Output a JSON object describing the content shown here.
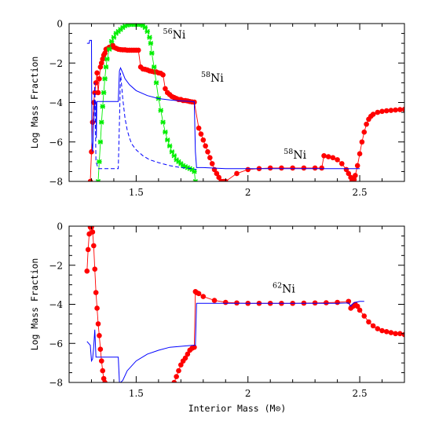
{
  "chart_data": [
    {
      "type": "scatter",
      "panel": "top",
      "title": "",
      "xlabel": "",
      "ylabel": "Log Mass Fraction",
      "xlim": [
        1.2,
        2.7
      ],
      "ylim": [
        -8,
        0
      ],
      "xticks": [
        1.5,
        2,
        2.5
      ],
      "xticklabels": [
        "1.5",
        "2",
        "2.5"
      ],
      "yticks": [
        0,
        -2,
        -4,
        -6,
        -8
      ],
      "yticklabels": [
        "0",
        "−2",
        "−4",
        "−6",
        "−8"
      ],
      "grid": false,
      "annotations": [
        {
          "sup": "56",
          "text": "Ni",
          "x": 1.62,
          "y": -0.75
        },
        {
          "sup": "58",
          "text": "Ni",
          "x": 1.79,
          "y": -2.95
        },
        {
          "sup": "58",
          "text": "Ni",
          "x": 2.16,
          "y": -6.85
        }
      ],
      "series": [
        {
          "style": "points",
          "color": "#ff0000",
          "marker": "circle",
          "x": [
            1.295,
            1.3,
            1.305,
            1.31,
            1.315,
            1.32,
            1.325,
            1.33,
            1.335,
            1.34,
            1.345,
            1.35,
            1.355,
            1.36,
            1.365,
            1.37,
            1.375,
            1.38,
            1.385,
            1.39,
            1.395,
            1.4,
            1.41,
            1.42,
            1.43,
            1.44,
            1.45,
            1.46,
            1.47,
            1.48,
            1.49,
            1.5,
            1.51,
            1.52,
            1.53,
            1.54,
            1.55,
            1.56,
            1.57,
            1.58,
            1.59,
            1.6,
            1.61,
            1.62,
            1.63,
            1.64,
            1.65,
            1.66,
            1.67,
            1.68,
            1.69,
            1.7,
            1.71,
            1.72,
            1.73,
            1.74,
            1.75,
            1.76,
            1.78,
            1.79,
            1.8,
            1.81,
            1.82,
            1.83,
            1.84,
            1.85,
            1.86,
            1.87,
            1.88,
            1.89,
            1.9,
            1.95,
            2.0,
            2.05,
            2.1,
            2.15,
            2.2,
            2.25,
            2.3,
            2.33,
            2.34,
            2.36,
            2.38,
            2.4,
            2.42,
            2.44,
            2.45,
            2.46,
            2.465,
            2.47,
            2.475,
            2.48,
            2.49,
            2.5,
            2.51,
            2.52,
            2.53,
            2.54,
            2.55,
            2.56,
            2.58,
            2.6,
            2.62,
            2.64,
            2.66,
            2.68,
            2.7
          ],
          "y": [
            -8,
            -6.5,
            -5,
            -4,
            -3.5,
            -3,
            -2.5,
            -3.5,
            -2.8,
            -2.2,
            -2,
            -1.8,
            -1.6,
            -1.5,
            -1.3,
            -1.3,
            -1.25,
            -1.2,
            -1.2,
            -1.15,
            -1.1,
            -1.2,
            -1.25,
            -1.3,
            -1.32,
            -1.33,
            -1.33,
            -1.35,
            -1.35,
            -1.35,
            -1.35,
            -1.35,
            -1.35,
            -2.2,
            -2.3,
            -2.32,
            -2.35,
            -2.4,
            -2.42,
            -2.45,
            -2.45,
            -2.5,
            -2.52,
            -2.6,
            -3.3,
            -3.5,
            -3.6,
            -3.7,
            -3.75,
            -3.8,
            -3.85,
            -3.85,
            -3.9,
            -3.9,
            -3.92,
            -3.95,
            -3.97,
            -3.98,
            -5.3,
            -5.6,
            -5.9,
            -6.2,
            -6.5,
            -6.8,
            -7.1,
            -7.4,
            -7.6,
            -7.8,
            -8,
            -8,
            -8,
            -7.6,
            -7.4,
            -7.35,
            -7.32,
            -7.32,
            -7.32,
            -7.32,
            -7.32,
            -7.32,
            -6.7,
            -6.75,
            -6.8,
            -6.9,
            -7.1,
            -7.4,
            -7.6,
            -7.8,
            -8,
            -8,
            -7.9,
            -7.7,
            -7.2,
            -6.6,
            -6,
            -5.5,
            -5.1,
            -4.85,
            -4.7,
            -4.6,
            -4.5,
            -4.45,
            -4.42,
            -4.4,
            -4.38,
            -4.36,
            -4.35
          ]
        },
        {
          "style": "points",
          "color": "#00ee00",
          "marker": "cross",
          "x": [
            1.33,
            1.335,
            1.34,
            1.345,
            1.35,
            1.355,
            1.36,
            1.365,
            1.37,
            1.38,
            1.39,
            1.4,
            1.41,
            1.42,
            1.43,
            1.44,
            1.45,
            1.46,
            1.47,
            1.48,
            1.49,
            1.5,
            1.51,
            1.52,
            1.53,
            1.54,
            1.55,
            1.56,
            1.565,
            1.57,
            1.58,
            1.59,
            1.6,
            1.61,
            1.62,
            1.63,
            1.64,
            1.65,
            1.66,
            1.67,
            1.68,
            1.69,
            1.7,
            1.71,
            1.72,
            1.73,
            1.74,
            1.75,
            1.76,
            1.765
          ],
          "y": [
            -8,
            -7,
            -6,
            -5,
            -4.2,
            -3.5,
            -2.8,
            -2.2,
            -1.8,
            -1.3,
            -0.9,
            -0.7,
            -0.5,
            -0.4,
            -0.3,
            -0.2,
            -0.12,
            -0.08,
            -0.05,
            -0.05,
            -0.05,
            -0.05,
            -0.05,
            -0.05,
            -0.1,
            -0.2,
            -0.4,
            -0.7,
            -1,
            -1.5,
            -2.2,
            -3,
            -3.8,
            -4.4,
            -5,
            -5.5,
            -5.9,
            -6.2,
            -6.5,
            -6.7,
            -6.9,
            -7,
            -7.1,
            -7.2,
            -7.25,
            -7.3,
            -7.35,
            -7.4,
            -7.5,
            -8
          ]
        },
        {
          "style": "line",
          "color": "#0000ff",
          "dash": false,
          "x": [
            1.28,
            1.29,
            1.292,
            1.3,
            1.302,
            1.305,
            1.31,
            1.315,
            1.32,
            1.322,
            1.324,
            1.33,
            1.35,
            1.4,
            1.42,
            1.425,
            1.43,
            1.44,
            1.45,
            1.47,
            1.5,
            1.55,
            1.6,
            1.65,
            1.7,
            1.75,
            1.76,
            1.765,
            1.77,
            1.8,
            1.9,
            2.0,
            2.1,
            2.2,
            2.3,
            2.35,
            2.4,
            2.45,
            2.5
          ],
          "y": [
            -1,
            -1,
            -0.85,
            -0.85,
            -6,
            -6.5,
            -5.2,
            -3.9,
            -4,
            -5.8,
            -3.95,
            -3.95,
            -3.95,
            -3.95,
            -3.95,
            -2.4,
            -2.25,
            -2.5,
            -2.8,
            -3.1,
            -3.4,
            -3.65,
            -3.8,
            -3.87,
            -3.92,
            -3.95,
            -3.97,
            -6.5,
            -7.3,
            -7.3,
            -7.35,
            -7.35,
            -7.35,
            -7.35,
            -7.35,
            -7.35,
            -7.35,
            -7.35,
            -7.35
          ]
        },
        {
          "style": "line",
          "color": "#0000ff",
          "dash": true,
          "x": [
            1.31,
            1.315,
            1.32,
            1.33,
            1.34,
            1.35,
            1.4,
            1.42,
            1.425,
            1.43,
            1.44,
            1.45,
            1.46,
            1.47,
            1.48,
            1.5,
            1.53,
            1.56,
            1.6,
            1.65,
            1.7,
            1.75,
            1.77
          ],
          "y": [
            -5,
            -3,
            -7,
            -7.35,
            -7.35,
            -7.35,
            -7.35,
            -7.35,
            -5,
            -2.5,
            -3.8,
            -4.8,
            -5.4,
            -5.8,
            -6.1,
            -6.4,
            -6.7,
            -6.9,
            -7.05,
            -7.2,
            -7.3,
            -7.35,
            -7.4
          ]
        }
      ]
    },
    {
      "type": "scatter",
      "panel": "bottom",
      "title": "",
      "xlabel": "Interior Mass (M⊙)",
      "ylabel": "Log Mass Fraction",
      "xlim": [
        1.2,
        2.7
      ],
      "ylim": [
        -8,
        0
      ],
      "xticks": [
        1.5,
        2,
        2.5
      ],
      "xticklabels": [
        "1.5",
        "2",
        "2.5"
      ],
      "yticks": [
        0,
        -2,
        -4,
        -6,
        -8
      ],
      "yticklabels": [
        "0",
        "−2",
        "−4",
        "−6",
        "−8"
      ],
      "grid": false,
      "annotations": [
        {
          "sup": "62",
          "text": "Ni",
          "x": 2.11,
          "y": -3.4
        }
      ],
      "series": [
        {
          "style": "points",
          "color": "#ff0000",
          "marker": "circle",
          "x": [
            1.28,
            1.285,
            1.29,
            1.295,
            1.3,
            1.305,
            1.31,
            1.315,
            1.32,
            1.325,
            1.33,
            1.335,
            1.34,
            1.345,
            1.35,
            1.355,
            1.36,
            1.67,
            1.68,
            1.69,
            1.7,
            1.71,
            1.72,
            1.73,
            1.74,
            1.75,
            1.76,
            1.765,
            1.77,
            1.78,
            1.8,
            1.85,
            1.9,
            1.95,
            2.0,
            2.05,
            2.1,
            2.15,
            2.2,
            2.25,
            2.3,
            2.35,
            2.4,
            2.45,
            2.46,
            2.47,
            2.48,
            2.49,
            2.5,
            2.52,
            2.54,
            2.56,
            2.58,
            2.6,
            2.62,
            2.64,
            2.66,
            2.68,
            2.7
          ],
          "y": [
            -2.3,
            -1.2,
            -0.4,
            -0.05,
            -0.05,
            -0.3,
            -1,
            -2.2,
            -3.4,
            -4.2,
            -5,
            -5.6,
            -6.3,
            -6.9,
            -7.4,
            -7.8,
            -8,
            -8,
            -7.7,
            -7.4,
            -7.1,
            -6.9,
            -6.75,
            -6.55,
            -6.35,
            -6.25,
            -6.2,
            -3.35,
            -3.4,
            -3.45,
            -3.6,
            -3.8,
            -3.9,
            -3.93,
            -3.95,
            -3.95,
            -3.95,
            -3.95,
            -3.95,
            -3.94,
            -3.93,
            -3.92,
            -3.9,
            -3.85,
            -4.2,
            -4.1,
            -4,
            -4.1,
            -4.3,
            -4.6,
            -4.9,
            -5.1,
            -5.25,
            -5.35,
            -5.4,
            -5.45,
            -5.5,
            -5.5,
            -5.55
          ]
        },
        {
          "style": "line",
          "color": "#0000ff",
          "dash": false,
          "x": [
            1.28,
            1.295,
            1.3,
            1.305,
            1.31,
            1.315,
            1.32,
            1.33,
            1.34,
            1.35,
            1.36,
            1.4,
            1.42,
            1.425,
            1.43,
            1.44,
            1.46,
            1.5,
            1.55,
            1.6,
            1.65,
            1.7,
            1.75,
            1.765,
            1.77,
            1.8,
            1.9,
            2.0,
            2.1,
            2.2,
            2.3,
            2.4,
            2.45,
            2.46,
            2.47,
            2.48,
            2.5,
            2.52
          ],
          "y": [
            -5.9,
            -6.1,
            -6.9,
            -6.8,
            -6.2,
            -5.3,
            -6.7,
            -6.7,
            -6.7,
            -6.7,
            -6.7,
            -6.7,
            -6.7,
            -8,
            -8,
            -7.9,
            -7.4,
            -6.9,
            -6.55,
            -6.35,
            -6.2,
            -6.15,
            -6.1,
            -6.1,
            -3.95,
            -3.95,
            -3.95,
            -3.95,
            -3.95,
            -3.95,
            -3.95,
            -3.95,
            -3.93,
            -4.1,
            -3.95,
            -3.9,
            -3.85,
            -3.85
          ]
        }
      ]
    }
  ]
}
